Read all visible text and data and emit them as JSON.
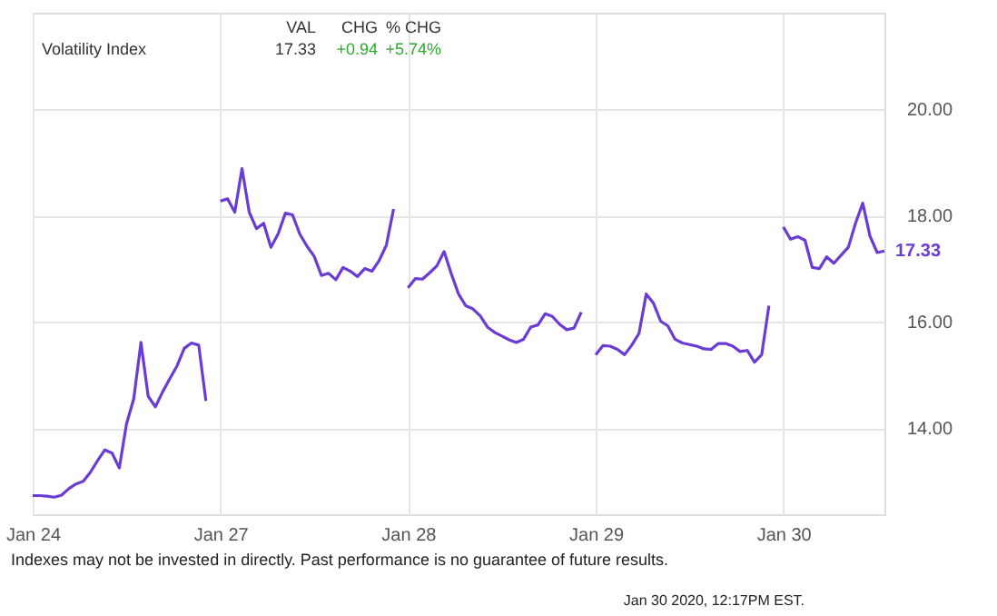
{
  "chart_data": {
    "type": "line",
    "categories": [
      "Jan 24",
      null,
      null,
      null,
      null,
      null,
      null,
      null,
      null,
      null,
      null,
      null,
      null,
      null,
      null,
      null,
      null,
      null,
      null,
      null,
      null,
      null,
      null,
      null,
      null,
      null,
      "Jan 27",
      null,
      null,
      null,
      null,
      null,
      null,
      null,
      null,
      null,
      null,
      null,
      null,
      null,
      null,
      null,
      null,
      null,
      null,
      null,
      null,
      null,
      null,
      null,
      null,
      null,
      "Jan 28",
      null,
      null,
      null,
      null,
      null,
      null,
      null,
      null,
      null,
      null,
      null,
      null,
      null,
      null,
      null,
      null,
      null,
      null,
      null,
      null,
      null,
      null,
      null,
      null,
      null,
      "Jan 29",
      null,
      null,
      null,
      null,
      null,
      null,
      null,
      null,
      null,
      null,
      null,
      null,
      null,
      null,
      null,
      null,
      null,
      null,
      null,
      null,
      null,
      null,
      null,
      null,
      null,
      "Jan 30",
      null,
      null,
      null,
      null,
      null,
      null,
      null,
      null,
      null,
      null,
      null,
      null,
      null,
      null
    ],
    "series": [
      {
        "color": "#6a3cd4",
        "values": [
          12.73,
          12.73,
          12.72,
          12.7,
          12.74,
          12.86,
          12.95,
          13.0,
          13.17,
          13.39,
          13.59,
          13.53,
          13.25,
          14.08,
          14.55,
          15.61,
          14.6,
          14.4,
          14.68,
          14.93,
          15.17,
          15.5,
          15.6,
          15.56,
          14.51,
          null,
          18.27,
          18.31,
          18.06,
          18.88,
          18.06,
          17.75,
          17.85,
          17.4,
          17.65,
          18.04,
          18.01,
          17.65,
          17.42,
          17.23,
          16.87,
          16.91,
          16.79,
          17.02,
          16.95,
          16.85,
          17.0,
          16.95,
          17.15,
          17.44,
          18.12,
          null,
          16.64,
          16.81,
          16.8,
          16.92,
          17.05,
          17.32,
          16.9,
          16.52,
          16.3,
          16.24,
          16.11,
          15.9,
          15.8,
          15.73,
          15.66,
          15.61,
          15.67,
          15.9,
          15.94,
          16.15,
          16.1,
          15.95,
          15.85,
          15.88,
          16.18,
          null,
          15.38,
          15.55,
          15.54,
          15.48,
          15.38,
          15.56,
          15.78,
          16.52,
          16.35,
          16.01,
          15.92,
          15.67,
          15.6,
          15.57,
          15.54,
          15.49,
          15.48,
          15.59,
          15.59,
          15.54,
          15.44,
          15.46,
          15.24,
          15.38,
          16.3,
          null,
          17.78,
          17.55,
          17.6,
          17.53,
          17.02,
          17.0,
          17.22,
          17.1,
          17.25,
          17.4,
          17.85,
          18.23,
          17.61,
          17.3,
          17.33
        ]
      }
    ],
    "ylim": [
      12.38,
      21.81
    ],
    "yticks": [
      {
        "value": 14,
        "label": "14.00"
      },
      {
        "value": 16,
        "label": "16.00"
      },
      {
        "value": 18,
        "label": "18.00"
      },
      {
        "value": 20,
        "label": "20.00"
      }
    ],
    "grid": true,
    "line_style": "solid",
    "annotations": [
      "VAL",
      "CHG",
      "% CHG",
      "Volatility Index",
      "17.33",
      "+0.94",
      "+5.74%",
      "Indexes may not be invested in directly. Past performance is no guarantee of future results.",
      "Jan 30 2020, 12:17PM EST.",
      "17.33"
    ]
  }
}
